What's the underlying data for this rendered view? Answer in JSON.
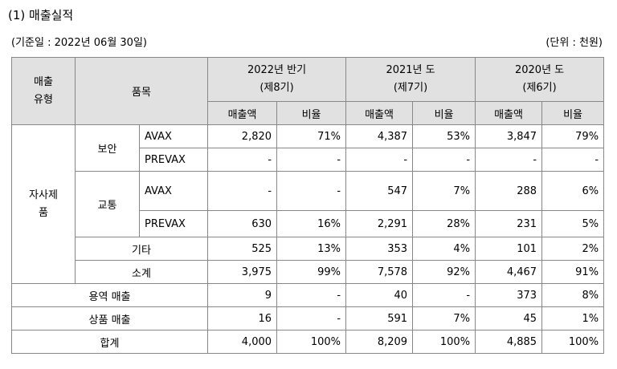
{
  "title": "(1) 매출실적",
  "base_date": "(기준일 : 2022년 06월 30일)",
  "unit": "(단위 : 천원)",
  "header": {
    "type_line1": "매출",
    "type_line2": "유형",
    "item": "품목",
    "p2022_line1": "2022년 반기",
    "p2022_line2": "(제8기)",
    "p2021_line1": "2021년 도",
    "p2021_line2": "(제7기)",
    "p2020_line1": "2020년 도",
    "p2020_line2": "(제6기)",
    "sales": "매출액",
    "ratio": "비율"
  },
  "groups": {
    "own_product_line1": "자사제",
    "own_product_line2": "품",
    "security": "보안",
    "traffic": "교통"
  },
  "rows": [
    {
      "label": "AVAX",
      "cells": [
        "2,820",
        "71%",
        "4,387",
        "53%",
        "3,847",
        "79%"
      ]
    },
    {
      "label": "PREVAX",
      "cells": [
        "-",
        "-",
        "-",
        "-",
        "-",
        "-"
      ]
    },
    {
      "label": "AVAX",
      "cells": [
        "-",
        "-",
        "547",
        "7%",
        "288",
        "6%"
      ]
    },
    {
      "label": "PREVAX",
      "cells": [
        "630",
        "16%",
        "2,291",
        "28%",
        "231",
        "5%"
      ]
    },
    {
      "label": "기타",
      "cells": [
        "525",
        "13%",
        "353",
        "4%",
        "101",
        "2%"
      ]
    },
    {
      "label": "소계",
      "cells": [
        "3,975",
        "99%",
        "7,578",
        "92%",
        "4,467",
        "91%"
      ]
    },
    {
      "label": "용역 매출",
      "cells": [
        "9",
        "-",
        "40",
        "-",
        "373",
        "8%"
      ]
    },
    {
      "label": "상품 매출",
      "cells": [
        "16",
        "-",
        "591",
        "7%",
        "45",
        "1%"
      ]
    },
    {
      "label": "합계",
      "cells": [
        "4,000",
        "100%",
        "8,209",
        "100%",
        "4,885",
        "100%"
      ]
    }
  ]
}
